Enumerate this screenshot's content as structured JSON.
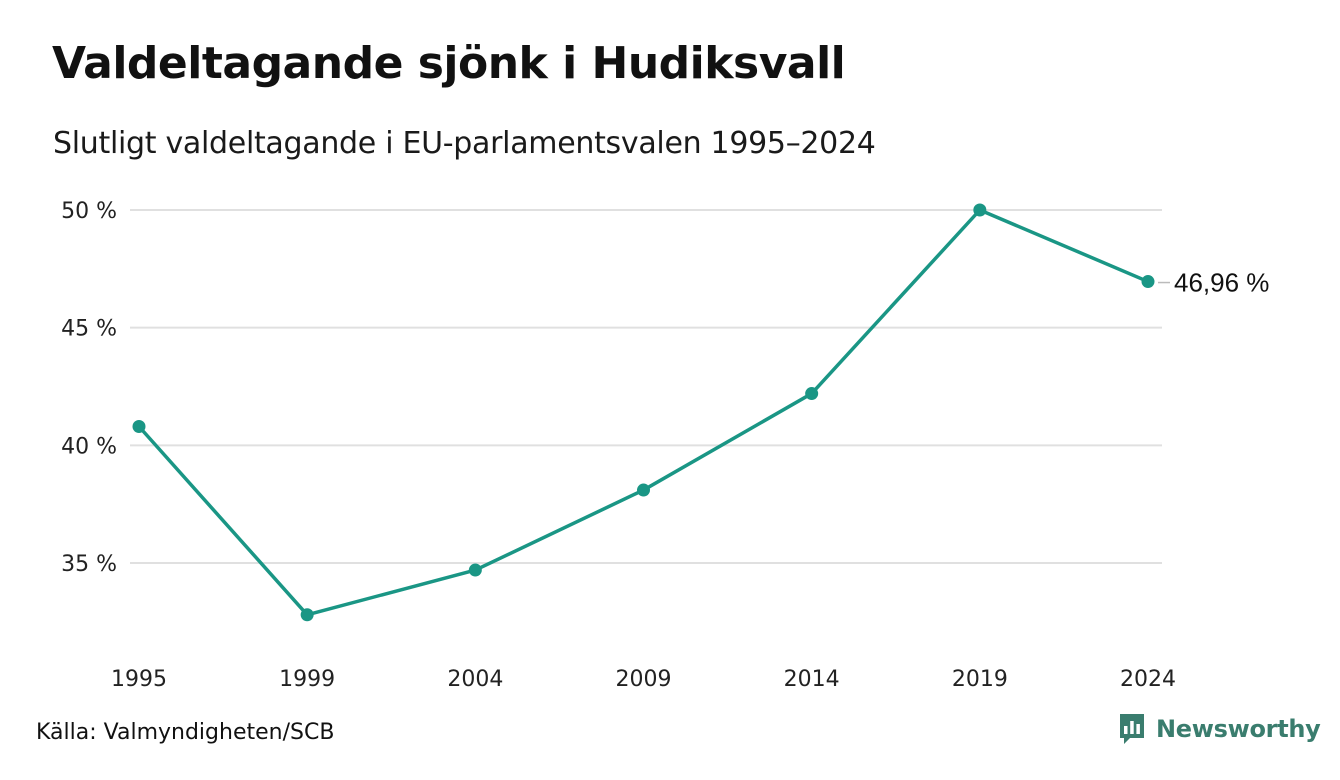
{
  "header": {
    "title": "Valdeltagande sjönk i Hudiksvall",
    "subtitle": "Slutligt valdeltagande i EU-parlamentsvalen 1995–2024"
  },
  "footer": {
    "source": "Källa: Valmyndigheten/SCB",
    "brand": "Newsworthy",
    "brand_icon": "bar-chart-speech-bubble-icon"
  },
  "colors": {
    "line": "#1a9685",
    "grid": "#e0e0e0",
    "brand": "#3a7d6e"
  },
  "chart_data": {
    "type": "line",
    "title": "",
    "xlabel": "",
    "ylabel": "",
    "categories": [
      "1995",
      "1999",
      "2004",
      "2009",
      "2014",
      "2019",
      "2024"
    ],
    "series": [
      {
        "values": [
          40.8,
          32.8,
          34.7,
          38.1,
          42.2,
          50.0,
          46.96
        ]
      }
    ],
    "ylim": [
      31,
      50
    ],
    "yticks": [
      35,
      40,
      45,
      50
    ],
    "ytick_labels": [
      "35 %",
      "40 %",
      "45 %",
      "50 %"
    ],
    "end_label": "46,96 %",
    "grid": true,
    "legend": "none"
  }
}
